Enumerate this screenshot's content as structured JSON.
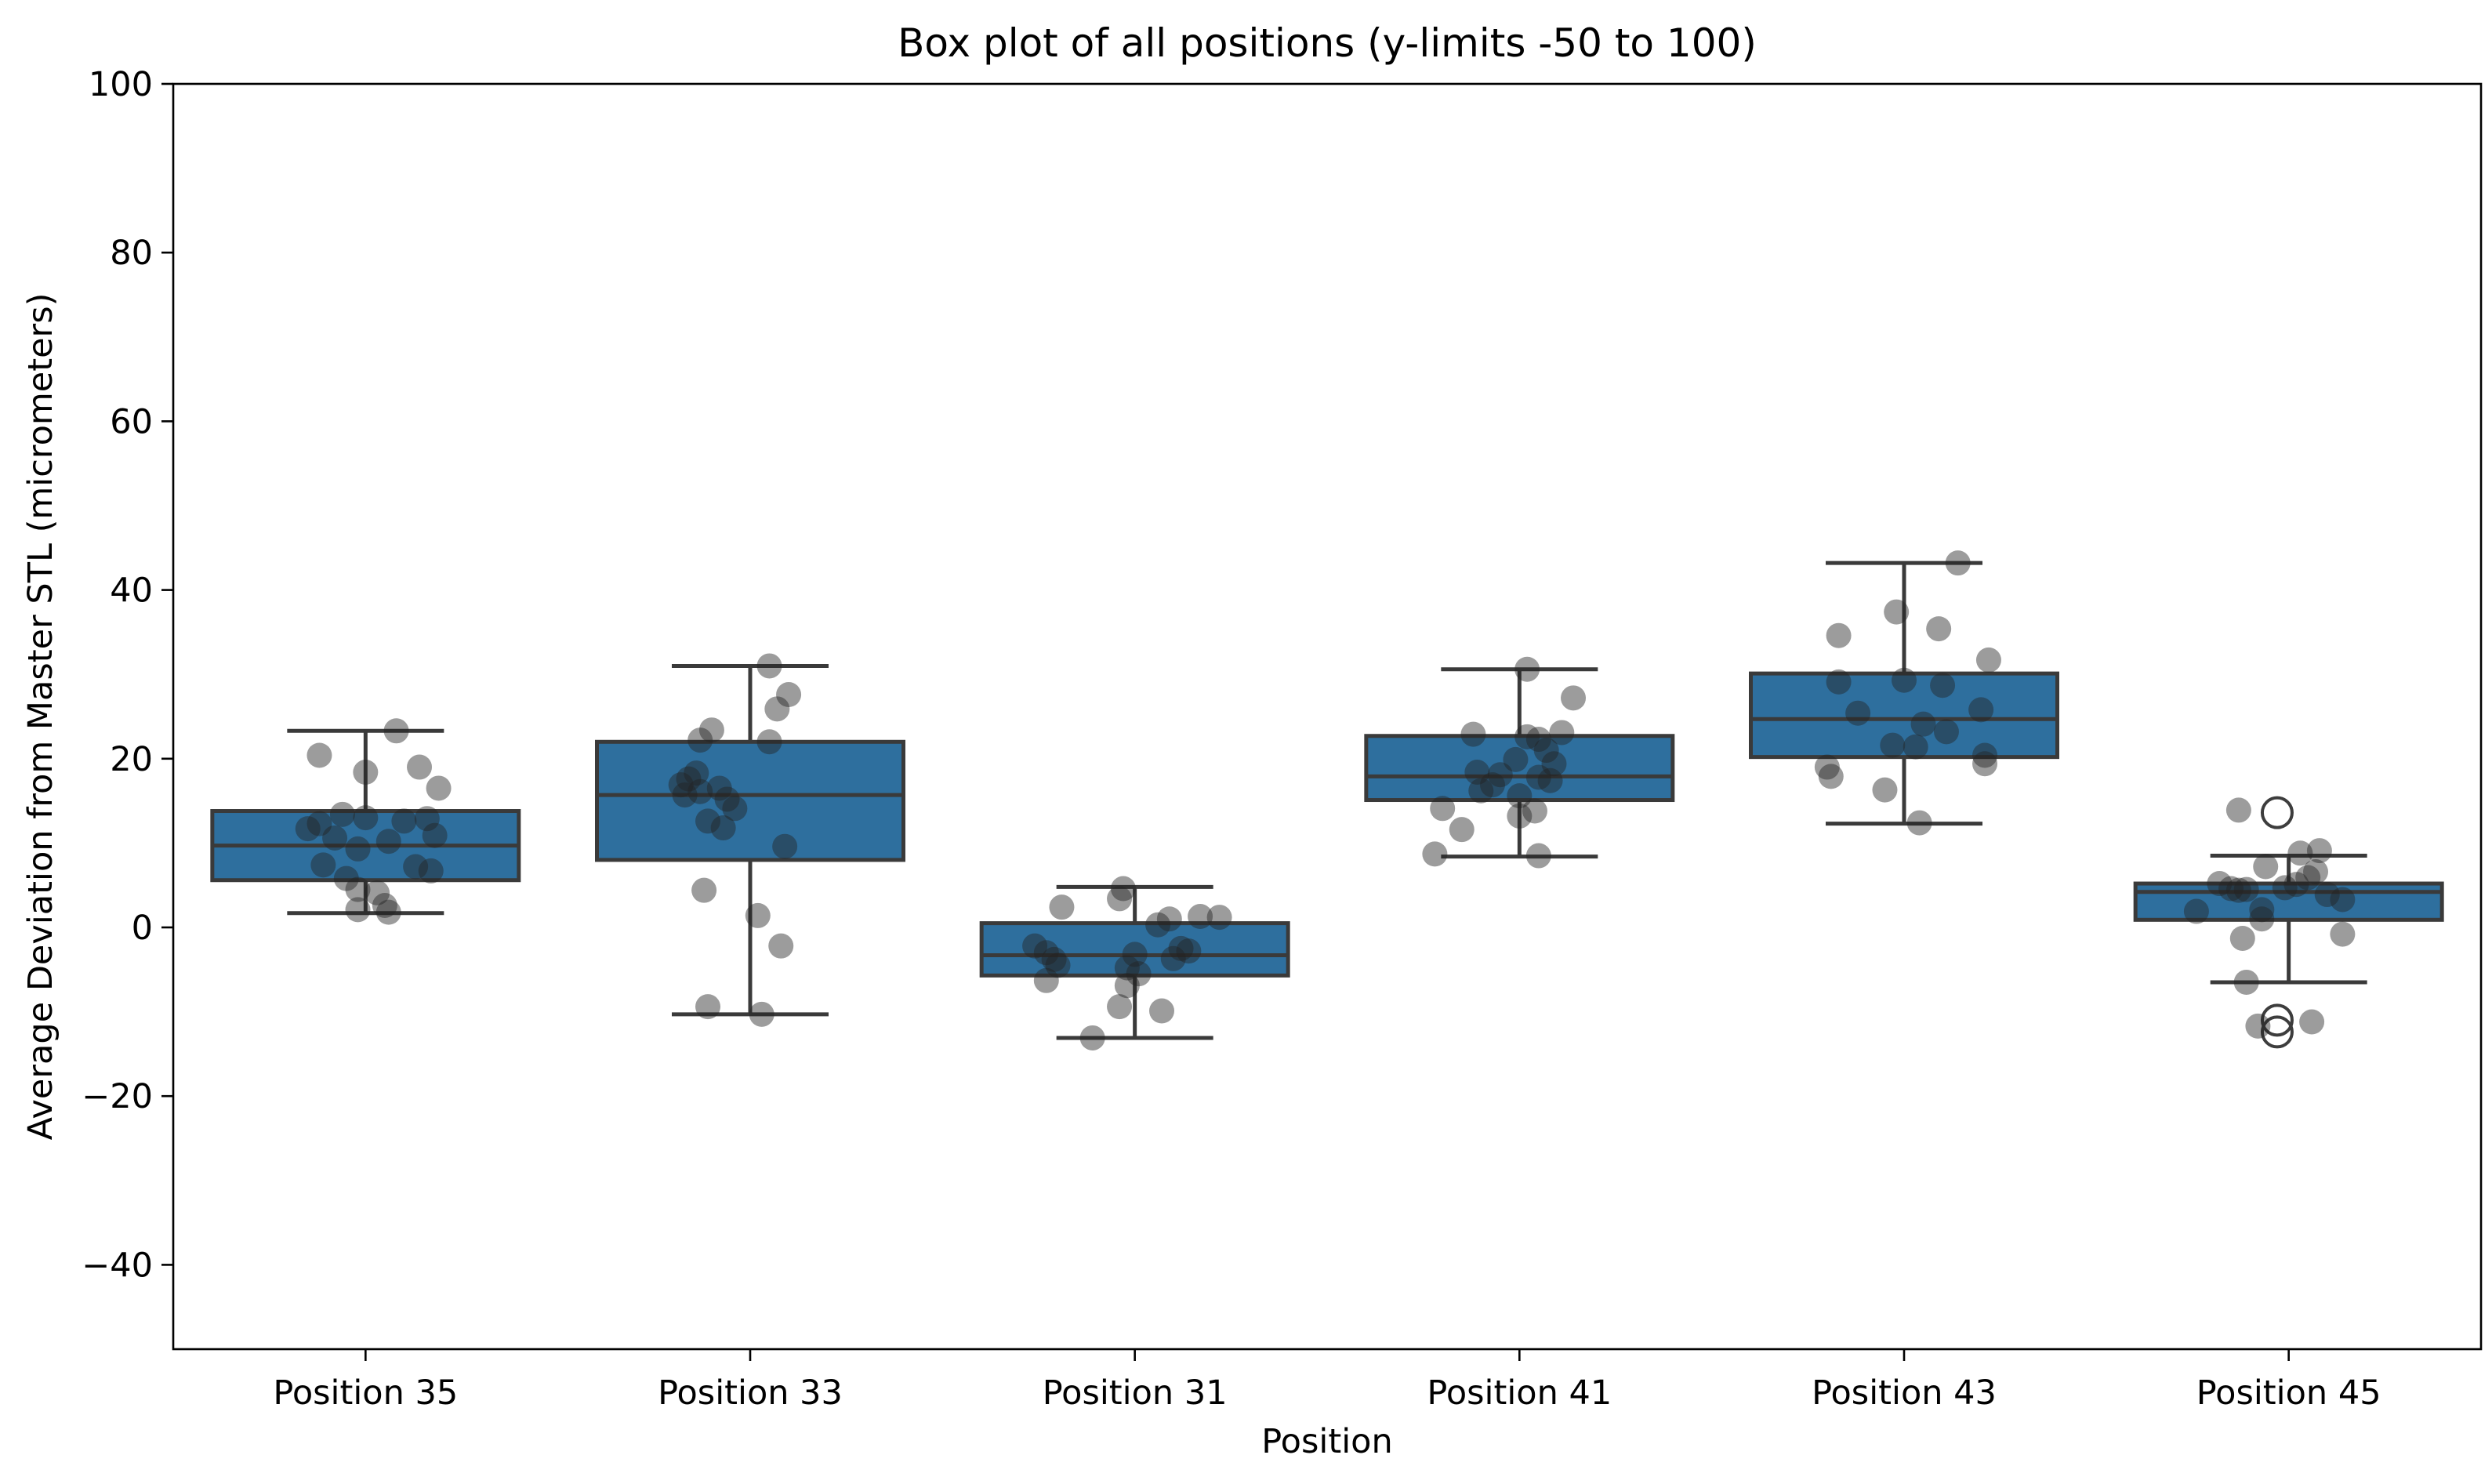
{
  "chart_data": {
    "type": "box",
    "title": "Box plot of all positions (y-limits -50 to 100)",
    "xlabel": "Position",
    "ylabel": "Average Deviation from Master STL (micrometers)",
    "ylim": [
      -50,
      100
    ],
    "yticks": [
      100,
      80,
      60,
      40,
      20,
      0,
      -20,
      -40
    ],
    "ytick_labels": [
      "100",
      "80",
      "60",
      "40",
      "20",
      "0",
      "−20",
      "−40"
    ],
    "categories": [
      "Position 35",
      "Position 33",
      "Position 31",
      "Position 41",
      "Position 43",
      "Position 45"
    ],
    "grid": false,
    "legend": null,
    "series": [
      {
        "label": "Position 35",
        "stats": {
          "whisker_low": 1.7,
          "q1": 5.6,
          "median": 9.7,
          "q3": 13.8,
          "whisker_high": 23.3
        },
        "fliers": [],
        "points": [
          [
            -0.12,
            20.4
          ],
          [
            0.08,
            23.3
          ],
          [
            0.0,
            18.4
          ],
          [
            0.14,
            19.0
          ],
          [
            0.19,
            16.5
          ],
          [
            -0.06,
            13.4
          ],
          [
            -0.12,
            12.3
          ],
          [
            0.0,
            13.0
          ],
          [
            -0.15,
            11.7
          ],
          [
            0.1,
            12.6
          ],
          [
            0.16,
            12.9
          ],
          [
            -0.08,
            10.6
          ],
          [
            0.06,
            10.2
          ],
          [
            -0.02,
            9.3
          ],
          [
            0.18,
            10.9
          ],
          [
            -0.11,
            7.4
          ],
          [
            0.13,
            7.2
          ],
          [
            0.17,
            6.7
          ],
          [
            -0.05,
            5.8
          ],
          [
            -0.02,
            4.5
          ],
          [
            0.03,
            4.1
          ],
          [
            0.05,
            2.6
          ],
          [
            -0.02,
            2.1
          ],
          [
            0.06,
            1.8
          ]
        ]
      },
      {
        "label": "Position 33",
        "stats": {
          "whisker_low": -10.3,
          "q1": 8.0,
          "median": 15.7,
          "q3": 22.0,
          "whisker_high": 31.0
        },
        "fliers": [],
        "points": [
          [
            0.05,
            31.0
          ],
          [
            -0.1,
            23.4
          ],
          [
            0.1,
            27.6
          ],
          [
            0.07,
            25.9
          ],
          [
            -0.13,
            22.2
          ],
          [
            0.05,
            22.0
          ],
          [
            -0.14,
            18.3
          ],
          [
            -0.16,
            17.6
          ],
          [
            -0.18,
            16.9
          ],
          [
            -0.13,
            16.1
          ],
          [
            -0.08,
            16.5
          ],
          [
            -0.06,
            15.2
          ],
          [
            -0.17,
            15.7
          ],
          [
            -0.04,
            14.1
          ],
          [
            -0.11,
            12.6
          ],
          [
            -0.07,
            11.8
          ],
          [
            0.09,
            9.6
          ],
          [
            -0.12,
            4.4
          ],
          [
            0.02,
            1.4
          ],
          [
            0.08,
            -2.2
          ],
          [
            -0.11,
            -9.4
          ],
          [
            0.03,
            -10.3
          ]
        ]
      },
      {
        "label": "Position 31",
        "stats": {
          "whisker_low": -13.1,
          "q1": -5.7,
          "median": -3.3,
          "q3": 0.5,
          "whisker_high": 4.8
        },
        "fliers": [],
        "points": [
          [
            -0.03,
            4.6
          ],
          [
            -0.04,
            3.4
          ],
          [
            -0.19,
            2.4
          ],
          [
            0.09,
            1.0
          ],
          [
            0.17,
            1.3
          ],
          [
            0.22,
            1.2
          ],
          [
            0.06,
            0.3
          ],
          [
            -0.26,
            -2.2
          ],
          [
            -0.23,
            -3.0
          ],
          [
            -0.21,
            -3.8
          ],
          [
            -0.2,
            -4.5
          ],
          [
            -0.23,
            -6.3
          ],
          [
            0.0,
            -3.2
          ],
          [
            0.12,
            -2.5
          ],
          [
            0.14,
            -2.8
          ],
          [
            0.1,
            -3.7
          ],
          [
            -0.02,
            -4.8
          ],
          [
            0.01,
            -5.5
          ],
          [
            -0.02,
            -6.9
          ],
          [
            -0.04,
            -9.4
          ],
          [
            0.07,
            -9.9
          ],
          [
            -0.11,
            -13.1
          ]
        ]
      },
      {
        "label": "Position 41",
        "stats": {
          "whisker_low": 8.4,
          "q1": 15.1,
          "median": 17.9,
          "q3": 22.7,
          "whisker_high": 30.6
        },
        "fliers": [],
        "points": [
          [
            0.02,
            30.6
          ],
          [
            0.14,
            27.2
          ],
          [
            -0.12,
            22.9
          ],
          [
            0.02,
            22.6
          ],
          [
            0.05,
            22.3
          ],
          [
            0.11,
            23.1
          ],
          [
            0.07,
            21.0
          ],
          [
            -0.01,
            19.9
          ],
          [
            0.09,
            19.4
          ],
          [
            -0.11,
            18.4
          ],
          [
            -0.05,
            18.1
          ],
          [
            0.05,
            17.8
          ],
          [
            0.08,
            17.4
          ],
          [
            -0.07,
            16.9
          ],
          [
            -0.1,
            16.2
          ],
          [
            0.0,
            15.6
          ],
          [
            -0.2,
            14.1
          ],
          [
            0.04,
            13.8
          ],
          [
            0.0,
            13.2
          ],
          [
            -0.15,
            11.6
          ],
          [
            -0.22,
            8.7
          ],
          [
            0.05,
            8.5
          ]
        ]
      },
      {
        "label": "Position 43",
        "stats": {
          "whisker_low": 12.3,
          "q1": 20.2,
          "median": 24.7,
          "q3": 30.1,
          "whisker_high": 43.2
        },
        "fliers": [],
        "points": [
          [
            0.14,
            43.2
          ],
          [
            -0.02,
            37.4
          ],
          [
            0.09,
            35.4
          ],
          [
            -0.17,
            34.6
          ],
          [
            0.22,
            31.7
          ],
          [
            -0.17,
            29.1
          ],
          [
            0.0,
            29.3
          ],
          [
            0.1,
            28.7
          ],
          [
            -0.12,
            25.4
          ],
          [
            0.2,
            25.8
          ],
          [
            0.05,
            24.1
          ],
          [
            0.11,
            23.2
          ],
          [
            -0.03,
            21.6
          ],
          [
            0.03,
            21.4
          ],
          [
            0.21,
            20.4
          ],
          [
            0.21,
            19.4
          ],
          [
            -0.2,
            19.0
          ],
          [
            -0.19,
            17.9
          ],
          [
            -0.05,
            16.3
          ],
          [
            0.04,
            12.4
          ]
        ]
      },
      {
        "label": "Position 45",
        "stats": {
          "whisker_low": -6.5,
          "q1": 0.9,
          "median": 4.2,
          "q3": 5.2,
          "whisker_high": 8.5
        },
        "fliers": [
          [
            -0.03,
            13.6
          ],
          [
            -0.03,
            -11.0
          ],
          [
            -0.03,
            -12.4
          ]
        ],
        "points": [
          [
            -0.13,
            13.9
          ],
          [
            0.03,
            8.8
          ],
          [
            0.08,
            9.1
          ],
          [
            0.07,
            6.6
          ],
          [
            -0.06,
            7.2
          ],
          [
            0.05,
            5.9
          ],
          [
            -0.18,
            5.2
          ],
          [
            0.02,
            5.1
          ],
          [
            -0.15,
            4.6
          ],
          [
            -0.13,
            4.4
          ],
          [
            -0.11,
            4.5
          ],
          [
            -0.01,
            4.7
          ],
          [
            0.1,
            3.9
          ],
          [
            0.14,
            3.3
          ],
          [
            -0.24,
            1.9
          ],
          [
            -0.07,
            2.1
          ],
          [
            -0.07,
            1.0
          ],
          [
            0.14,
            -0.8
          ],
          [
            -0.12,
            -1.3
          ],
          [
            -0.11,
            -6.5
          ],
          [
            -0.08,
            -11.7
          ],
          [
            0.06,
            -11.2
          ]
        ]
      }
    ],
    "colors": {
      "box_fill": "#2e6f9e",
      "box_edge": "#3a3a3a",
      "whisker": "#3a3a3a",
      "median": "#3a3a3a",
      "dot": "rgba(35,35,35,0.45)",
      "flier_edge": "#3d3d3d",
      "spine": "#000000",
      "background": "#ffffff",
      "text": "#000000"
    }
  }
}
